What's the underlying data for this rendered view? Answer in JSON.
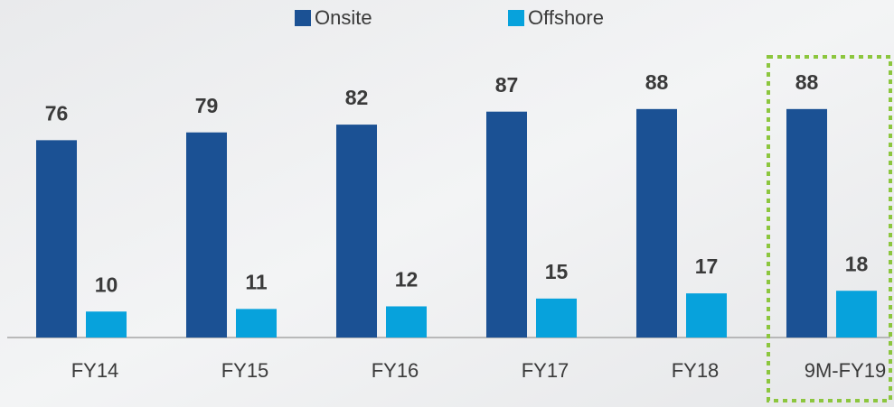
{
  "chart_data": {
    "type": "bar",
    "categories": [
      "FY14",
      "FY15",
      "FY16",
      "FY17",
      "FY18",
      "9M-FY19"
    ],
    "series": [
      {
        "name": "Onsite",
        "color": "#1b5194",
        "values": [
          76,
          79,
          82,
          87,
          88,
          88
        ]
      },
      {
        "name": "Offshore",
        "color": "#07a2dc",
        "values": [
          10,
          11,
          12,
          15,
          17,
          18
        ]
      }
    ],
    "ylim": [
      0,
      130
    ],
    "legend": "top"
  }
}
